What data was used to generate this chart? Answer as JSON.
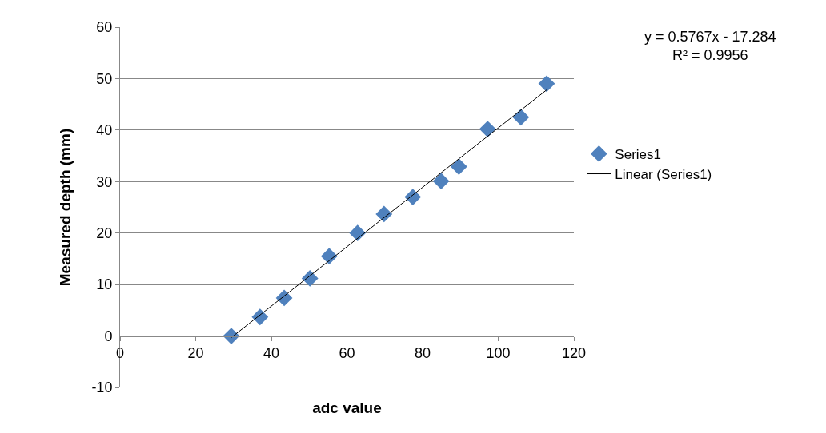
{
  "chart_data": {
    "type": "scatter",
    "xlabel": "adc value",
    "ylabel": "Measured depth (mm)",
    "xlim": [
      0,
      120
    ],
    "xticks": [
      0,
      20,
      40,
      60,
      80,
      100,
      120
    ],
    "ylim": [
      -10,
      60
    ],
    "yticks": [
      -10,
      0,
      10,
      20,
      30,
      40,
      50,
      60
    ],
    "grid": "y",
    "legend": "right",
    "series": [
      {
        "name": "Series1",
        "color": "#4f81bd",
        "marker": "diamond",
        "x": [
          29.4,
          37.0,
          43.4,
          50.2,
          55.3,
          62.8,
          69.8,
          77.4,
          84.9,
          89.6,
          97.2,
          106.0,
          112.8
        ],
        "values": [
          0,
          3.7,
          7.4,
          11.2,
          15.5,
          20.0,
          23.7,
          27.0,
          30.1,
          32.9,
          40.2,
          42.5,
          49.0
        ]
      },
      {
        "name": "Linear (Series1)",
        "type": "line",
        "color": "#000000",
        "x": [
          29.4,
          112.8
        ],
        "values": [
          -0.3,
          47.8
        ]
      }
    ],
    "annotations": [
      "y = 0.5767x - 17.284\nR² = 0.9956"
    ]
  }
}
